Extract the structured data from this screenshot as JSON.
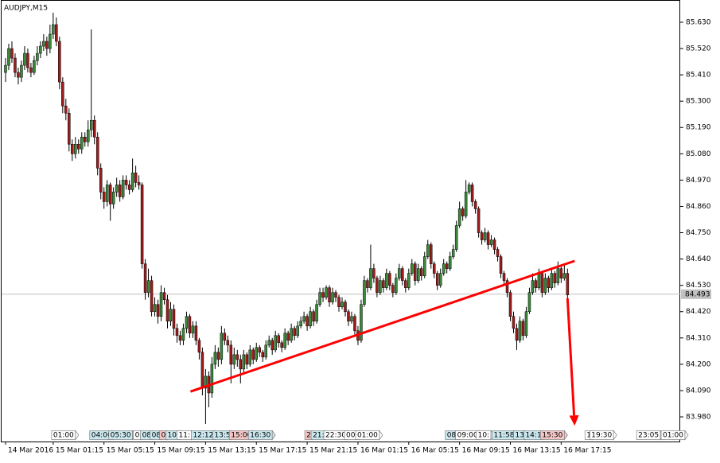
{
  "chart_data": {
    "type": "candlestick",
    "title": "AUDJPY,M15",
    "up_color": "#3a8a3a",
    "down_color": "#a01c1c",
    "wick_color": "#000000",
    "xlim": [
      -1.25,
      212.5
    ],
    "ylim": [
      83.877,
      85.723
    ],
    "yticks": [
      {
        "value": 85.63,
        "label": "85.630"
      },
      {
        "value": 85.52,
        "label": "85.520"
      },
      {
        "value": 85.41,
        "label": "85.410"
      },
      {
        "value": 85.3,
        "label": "85.300"
      },
      {
        "value": 85.19,
        "label": "85.190"
      },
      {
        "value": 85.08,
        "label": "85.080"
      },
      {
        "value": 84.97,
        "label": "84.970"
      },
      {
        "value": 84.86,
        "label": "84.860"
      },
      {
        "value": 84.75,
        "label": "84.750"
      },
      {
        "value": 84.64,
        "label": "84.640"
      },
      {
        "value": 84.53,
        "label": "84.530"
      },
      {
        "value": 84.42,
        "label": "84.420"
      },
      {
        "value": 84.31,
        "label": "84.310"
      },
      {
        "value": 84.2,
        "label": "84.200"
      },
      {
        "value": 84.09,
        "label": "84.090"
      },
      {
        "value": 83.98,
        "label": "83.980"
      }
    ],
    "xticks": [
      {
        "value": 0,
        "label": "14 Mar 2016"
      },
      {
        "value": 15,
        "label": "15 Mar 01:15"
      },
      {
        "value": 31,
        "label": "15 Mar 05:15"
      },
      {
        "value": 47,
        "label": "15 Mar 09:15"
      },
      {
        "value": 63,
        "label": "15 Mar 13:15"
      },
      {
        "value": 79,
        "label": "15 Mar 17:15"
      },
      {
        "value": 95,
        "label": "15 Mar 21:15"
      },
      {
        "value": 111,
        "label": "16 Mar 01:15"
      },
      {
        "value": 127,
        "label": "16 Mar 05:15"
      },
      {
        "value": 143,
        "label": "16 Mar 09:15"
      },
      {
        "value": 159,
        "label": "16 Mar 13:15"
      },
      {
        "value": 175,
        "label": "16 Mar 17:15"
      }
    ],
    "current_price": 84.493,
    "current_price_color": "#c0c0c0",
    "trendline": {
      "x": [
        58.25,
        179.25
      ],
      "y": [
        84.086,
        84.632
      ],
      "color": "#ff0000"
    },
    "arrow": {
      "x": [
        177,
        179.25
      ],
      "y": [
        84.476,
        83.943
      ],
      "color": "#ff0000"
    },
    "markers": [
      {
        "label": "01:00",
        "x": 14.5,
        "color": "#ffffff"
      },
      {
        "label": "04:00",
        "x": 26.5,
        "color": "#c9e8ef"
      },
      {
        "label": "05:30",
        "x": 32.5,
        "color": "#c9e8ef"
      },
      {
        "label": "0",
        "x": 40.25,
        "color": "#ffffff"
      },
      {
        "label": "08",
        "x": 42.5,
        "color": "#c9e8ef"
      },
      {
        "label": "08",
        "x": 45.5,
        "color": "#c9e8ef"
      },
      {
        "label": "0",
        "x": 48.5,
        "color": "#f4c6c6"
      },
      {
        "label": "10:",
        "x": 50.5,
        "color": "#c9e8ef"
      },
      {
        "label": "11:",
        "x": 54,
        "color": "#ffffff"
      },
      {
        "label": "12:12",
        "x": 58.5,
        "color": "#c9e8ef"
      },
      {
        "label": "13:5",
        "x": 65.25,
        "color": "#c9e8ef"
      },
      {
        "label": "15:00",
        "x": 70.5,
        "color": "#f4c6c6"
      },
      {
        "label": "16:30",
        "x": 76.5,
        "color": "#c9e8ef"
      },
      {
        "label": "2",
        "x": 94.25,
        "color": "#f4c6c6"
      },
      {
        "label": "21:",
        "x": 96.25,
        "color": "#c9e8ef"
      },
      {
        "label": "22:30",
        "x": 100.25,
        "color": "#ffffff"
      },
      {
        "label": "00:",
        "x": 106.75,
        "color": "#ffffff"
      },
      {
        "label": "01:00",
        "x": 110.25,
        "color": "#ffffff"
      },
      {
        "label": "08:",
        "x": 138.5,
        "color": "#c9e8ef"
      },
      {
        "label": "09:00",
        "x": 141.75,
        "color": "#ffffff"
      },
      {
        "label": "10:",
        "x": 148.25,
        "color": "#ffffff"
      },
      {
        "label": "11:58",
        "x": 153.25,
        "color": "#c9e8ef"
      },
      {
        "label": "13",
        "x": 160,
        "color": "#c9e8ef"
      },
      {
        "label": "14:1",
        "x": 163.25,
        "color": "#c9e8ef"
      },
      {
        "label": "15:30",
        "x": 168.5,
        "color": "#f4c6c6"
      },
      {
        "label": "1",
        "x": 182.5,
        "color": "#ffffff"
      },
      {
        "label": "19:30",
        "x": 184,
        "color": "#ffffff"
      },
      {
        "label": "23:05",
        "x": 198.75,
        "color": "#ffffff"
      },
      {
        "label": "01:00",
        "x": 206.5,
        "color": "#ffffff"
      }
    ],
    "candles": [
      [
        85.42,
        85.48,
        85.38,
        85.45
      ],
      [
        85.45,
        85.54,
        85.43,
        85.52
      ],
      [
        85.52,
        85.55,
        85.46,
        85.48
      ],
      [
        85.48,
        85.5,
        85.4,
        85.42
      ],
      [
        85.42,
        85.44,
        85.37,
        85.4
      ],
      [
        85.4,
        85.47,
        85.38,
        85.45
      ],
      [
        85.45,
        85.53,
        85.43,
        85.5
      ],
      [
        85.5,
        85.52,
        85.42,
        85.44
      ],
      [
        85.44,
        85.46,
        85.4,
        85.42
      ],
      [
        85.42,
        85.49,
        85.41,
        85.47
      ],
      [
        85.47,
        85.53,
        85.45,
        85.5
      ],
      [
        85.5,
        85.55,
        85.48,
        85.53
      ],
      [
        85.53,
        85.58,
        85.51,
        85.55
      ],
      [
        85.55,
        85.57,
        85.49,
        85.52
      ],
      [
        85.52,
        85.62,
        85.5,
        85.58
      ],
      [
        85.58,
        85.67,
        85.56,
        85.62
      ],
      [
        85.62,
        85.65,
        85.53,
        85.55
      ],
      [
        85.55,
        85.57,
        85.35,
        85.38
      ],
      [
        85.38,
        85.4,
        85.25,
        85.28
      ],
      [
        85.28,
        85.31,
        85.22,
        85.25
      ],
      [
        85.25,
        85.27,
        85.09,
        85.12
      ],
      [
        85.12,
        85.14,
        85.05,
        85.08
      ],
      [
        85.08,
        85.15,
        85.06,
        85.12
      ],
      [
        85.12,
        85.14,
        85.08,
        85.1
      ],
      [
        85.1,
        85.17,
        85.08,
        85.15
      ],
      [
        85.15,
        85.17,
        85.11,
        85.13
      ],
      [
        85.13,
        85.22,
        85.11,
        85.18
      ],
      [
        85.18,
        85.6,
        85.15,
        85.22
      ],
      [
        85.22,
        85.24,
        85.12,
        85.15
      ],
      [
        85.15,
        85.17,
        84.99,
        85.02
      ],
      [
        85.02,
        85.04,
        84.89,
        84.92
      ],
      [
        84.92,
        84.94,
        84.85,
        84.88
      ],
      [
        84.88,
        84.97,
        84.86,
        84.95
      ],
      [
        84.95,
        84.96,
        84.8,
        84.87
      ],
      [
        84.87,
        84.94,
        84.85,
        84.92
      ],
      [
        84.92,
        84.98,
        84.9,
        84.95
      ],
      [
        84.95,
        84.97,
        84.88,
        84.9
      ],
      [
        84.9,
        84.99,
        84.89,
        84.97
      ],
      [
        84.97,
        84.99,
        84.93,
        84.95
      ],
      [
        84.95,
        84.97,
        84.91,
        84.93
      ],
      [
        84.93,
        85.06,
        84.92,
        85.0
      ],
      [
        85.0,
        85.03,
        84.94,
        84.96
      ],
      [
        84.96,
        84.99,
        84.93,
        84.95
      ],
      [
        84.95,
        84.96,
        84.6,
        84.62
      ],
      [
        84.62,
        84.64,
        84.47,
        84.5
      ],
      [
        84.5,
        84.6,
        84.48,
        84.55
      ],
      [
        84.55,
        84.57,
        84.4,
        84.42
      ],
      [
        84.42,
        84.48,
        84.4,
        84.45
      ],
      [
        84.45,
        84.47,
        84.37,
        84.4
      ],
      [
        84.4,
        84.53,
        84.38,
        84.5
      ],
      [
        84.5,
        84.52,
        84.45,
        84.47
      ],
      [
        84.47,
        84.49,
        84.35,
        84.38
      ],
      [
        84.38,
        84.46,
        84.36,
        84.43
      ],
      [
        84.43,
        84.45,
        84.32,
        84.35
      ],
      [
        84.35,
        84.37,
        84.29,
        84.32
      ],
      [
        84.32,
        84.34,
        84.28,
        84.3
      ],
      [
        84.3,
        84.37,
        84.28,
        84.35
      ],
      [
        84.35,
        84.42,
        84.33,
        84.4
      ],
      [
        84.4,
        84.41,
        84.31,
        84.33
      ],
      [
        84.33,
        84.38,
        84.31,
        84.36
      ],
      [
        84.36,
        84.38,
        84.28,
        84.3
      ],
      [
        84.3,
        84.31,
        84.22,
        84.25
      ],
      [
        84.25,
        84.27,
        84.07,
        84.1
      ],
      [
        84.1,
        84.18,
        83.95,
        84.15
      ],
      [
        84.15,
        84.17,
        84.02,
        84.08
      ],
      [
        84.08,
        84.23,
        84.06,
        84.2
      ],
      [
        84.2,
        84.28,
        84.18,
        84.25
      ],
      [
        84.25,
        84.27,
        84.19,
        84.22
      ],
      [
        84.22,
        84.36,
        84.2,
        84.33
      ],
      [
        84.33,
        84.35,
        84.28,
        84.3
      ],
      [
        84.3,
        84.32,
        84.25,
        84.28
      ],
      [
        84.28,
        84.3,
        84.12,
        84.2
      ],
      [
        84.2,
        84.27,
        84.18,
        84.24
      ],
      [
        84.24,
        84.26,
        84.19,
        84.22
      ],
      [
        84.22,
        84.24,
        84.12,
        84.18
      ],
      [
        84.18,
        84.26,
        84.16,
        84.24
      ],
      [
        84.24,
        84.25,
        84.18,
        84.2
      ],
      [
        84.2,
        84.28,
        84.19,
        84.26
      ],
      [
        84.26,
        84.27,
        84.2,
        84.22
      ],
      [
        84.22,
        84.29,
        84.21,
        84.27
      ],
      [
        84.27,
        84.28,
        84.23,
        84.25
      ],
      [
        84.25,
        84.26,
        84.21,
        84.23
      ],
      [
        84.23,
        84.3,
        84.22,
        84.28
      ],
      [
        84.28,
        84.32,
        84.27,
        84.3
      ],
      [
        84.3,
        84.31,
        84.24,
        84.26
      ],
      [
        84.26,
        84.34,
        84.25,
        84.32
      ],
      [
        84.32,
        84.33,
        84.27,
        84.29
      ],
      [
        84.29,
        84.3,
        84.25,
        84.27
      ],
      [
        84.27,
        84.35,
        84.26,
        84.33
      ],
      [
        84.33,
        84.34,
        84.28,
        84.3
      ],
      [
        84.3,
        84.37,
        84.29,
        84.35
      ],
      [
        84.35,
        84.36,
        84.3,
        84.32
      ],
      [
        84.32,
        84.38,
        84.31,
        84.36
      ],
      [
        84.36,
        84.4,
        84.35,
        84.38
      ],
      [
        84.38,
        84.42,
        84.37,
        84.4
      ],
      [
        84.4,
        84.41,
        84.34,
        84.36
      ],
      [
        84.36,
        84.44,
        84.35,
        84.42
      ],
      [
        84.42,
        84.43,
        84.36,
        84.38
      ],
      [
        84.38,
        84.47,
        84.37,
        84.45
      ],
      [
        84.45,
        84.52,
        84.44,
        84.5
      ],
      [
        84.5,
        84.52,
        84.46,
        84.48
      ],
      [
        84.48,
        84.53,
        84.47,
        84.52
      ],
      [
        84.52,
        84.53,
        84.44,
        84.46
      ],
      [
        84.46,
        84.52,
        84.45,
        84.5
      ],
      [
        84.5,
        84.51,
        84.46,
        84.48
      ],
      [
        84.48,
        84.49,
        84.42,
        84.44
      ],
      [
        84.44,
        84.48,
        84.43,
        84.46
      ],
      [
        84.46,
        84.47,
        84.4,
        84.42
      ],
      [
        84.42,
        84.43,
        84.36,
        84.38
      ],
      [
        84.38,
        84.42,
        84.37,
        84.4
      ],
      [
        84.4,
        84.41,
        84.32,
        84.34
      ],
      [
        84.34,
        84.36,
        84.28,
        84.3
      ],
      [
        84.3,
        84.47,
        84.29,
        84.45
      ],
      [
        84.45,
        84.57,
        84.44,
        84.55
      ],
      [
        84.55,
        84.56,
        84.5,
        84.52
      ],
      [
        84.52,
        84.7,
        84.51,
        84.6
      ],
      [
        84.6,
        84.62,
        84.54,
        84.56
      ],
      [
        84.56,
        84.57,
        84.48,
        84.5
      ],
      [
        84.5,
        84.57,
        84.49,
        84.55
      ],
      [
        84.55,
        84.56,
        84.5,
        84.52
      ],
      [
        84.52,
        84.6,
        84.51,
        84.58
      ],
      [
        84.58,
        84.59,
        84.51,
        84.53
      ],
      [
        84.53,
        84.54,
        84.48,
        84.5
      ],
      [
        84.5,
        84.58,
        84.49,
        84.56
      ],
      [
        84.56,
        84.62,
        84.55,
        84.6
      ],
      [
        84.6,
        84.61,
        84.53,
        84.55
      ],
      [
        84.55,
        84.56,
        84.5,
        84.52
      ],
      [
        84.52,
        84.6,
        84.51,
        84.58
      ],
      [
        84.58,
        84.64,
        84.57,
        84.62
      ],
      [
        84.62,
        84.63,
        84.53,
        84.55
      ],
      [
        84.55,
        84.62,
        84.54,
        84.6
      ],
      [
        84.6,
        84.61,
        84.55,
        84.57
      ],
      [
        84.57,
        84.67,
        84.56,
        84.65
      ],
      [
        84.65,
        84.72,
        84.64,
        84.7
      ],
      [
        84.7,
        84.71,
        84.6,
        84.62
      ],
      [
        84.62,
        84.63,
        84.56,
        84.58
      ],
      [
        84.58,
        84.59,
        84.51,
        84.53
      ],
      [
        84.53,
        84.6,
        84.52,
        84.58
      ],
      [
        84.58,
        84.64,
        84.57,
        84.62
      ],
      [
        84.62,
        84.63,
        84.58,
        84.6
      ],
      [
        84.6,
        84.67,
        84.59,
        84.65
      ],
      [
        84.65,
        84.7,
        84.64,
        84.68
      ],
      [
        84.68,
        84.8,
        84.67,
        84.78
      ],
      [
        84.78,
        84.88,
        84.77,
        84.85
      ],
      [
        84.85,
        84.86,
        84.8,
        84.82
      ],
      [
        84.82,
        84.97,
        84.81,
        84.92
      ],
      [
        84.92,
        84.96,
        84.91,
        84.95
      ],
      [
        84.95,
        84.96,
        84.86,
        84.88
      ],
      [
        84.88,
        84.89,
        84.83,
        84.85
      ],
      [
        84.85,
        84.86,
        84.73,
        84.75
      ],
      [
        84.75,
        84.76,
        84.7,
        84.72
      ],
      [
        84.72,
        84.77,
        84.71,
        84.75
      ],
      [
        84.75,
        84.76,
        84.68,
        84.7
      ],
      [
        84.7,
        84.74,
        84.69,
        84.72
      ],
      [
        84.72,
        84.73,
        84.66,
        84.68
      ],
      [
        84.68,
        84.69,
        84.63,
        84.65
      ],
      [
        84.65,
        84.66,
        84.56,
        84.58
      ],
      [
        84.58,
        84.59,
        84.53,
        84.55
      ],
      [
        84.55,
        84.56,
        84.48,
        84.5
      ],
      [
        84.5,
        84.51,
        84.38,
        84.4
      ],
      [
        84.4,
        84.42,
        84.33,
        84.35
      ],
      [
        84.35,
        84.37,
        84.26,
        84.3
      ],
      [
        84.3,
        84.4,
        84.29,
        84.38
      ],
      [
        84.38,
        84.39,
        84.3,
        84.32
      ],
      [
        84.32,
        84.44,
        84.31,
        84.42
      ],
      [
        84.42,
        84.52,
        84.41,
        84.5
      ],
      [
        84.5,
        84.58,
        84.49,
        84.55
      ],
      [
        84.55,
        84.56,
        84.5,
        84.52
      ],
      [
        84.52,
        84.6,
        84.51,
        84.58
      ],
      [
        84.58,
        84.59,
        84.48,
        84.5
      ],
      [
        84.5,
        84.58,
        84.49,
        84.56
      ],
      [
        84.56,
        84.57,
        84.5,
        84.52
      ],
      [
        84.52,
        84.6,
        84.51,
        84.58
      ],
      [
        84.58,
        84.59,
        84.52,
        84.54
      ],
      [
        84.54,
        84.63,
        84.53,
        84.6
      ],
      [
        84.6,
        84.61,
        84.54,
        84.56
      ],
      [
        84.56,
        84.62,
        84.55,
        84.58
      ],
      [
        84.58,
        84.6,
        84.47,
        84.49
      ]
    ]
  }
}
